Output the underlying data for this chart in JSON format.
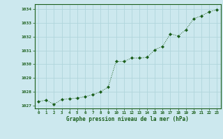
{
  "x": [
    0,
    1,
    2,
    3,
    4,
    5,
    6,
    7,
    8,
    9,
    10,
    11,
    12,
    13,
    14,
    15,
    16,
    17,
    18,
    19,
    20,
    21,
    22,
    23
  ],
  "y": [
    1027.3,
    1027.4,
    1027.1,
    1027.45,
    1027.5,
    1027.55,
    1027.65,
    1027.8,
    1028.0,
    1028.35,
    1030.2,
    1030.2,
    1030.45,
    1030.45,
    1030.5,
    1031.05,
    1031.3,
    1032.2,
    1032.05,
    1032.5,
    1033.3,
    1033.5,
    1033.8,
    1033.95
  ],
  "line_color": "#1a5e1a",
  "marker_color": "#1a5e1a",
  "bg_color": "#cce8ee",
  "grid_color": "#b0d5dc",
  "xlabel": "Graphe pression niveau de la mer (hPa)",
  "xlabel_color": "#1a5e1a",
  "tick_color": "#1a5e1a",
  "ylim": [
    1026.8,
    1034.35
  ],
  "xlim": [
    -0.5,
    23.5
  ],
  "yticks": [
    1027,
    1028,
    1029,
    1030,
    1031,
    1032,
    1033,
    1034
  ],
  "xticks": [
    0,
    1,
    2,
    3,
    4,
    5,
    6,
    7,
    8,
    9,
    10,
    11,
    12,
    13,
    14,
    15,
    16,
    17,
    18,
    19,
    20,
    21,
    22,
    23
  ]
}
